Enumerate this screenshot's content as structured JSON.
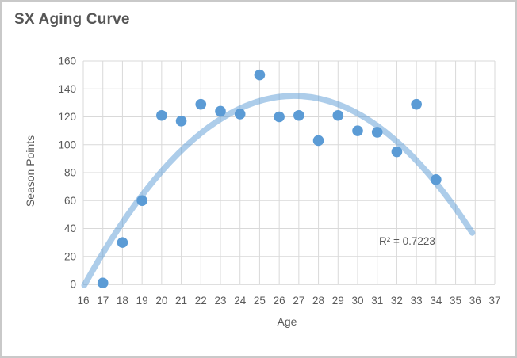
{
  "chart": {
    "title": "SX Aging Curve",
    "xlabel": "Age",
    "ylabel": "Season Points"
  },
  "chart_data": {
    "type": "scatter",
    "title": "SX Aging Curve",
    "xlabel": "Age",
    "ylabel": "Season Points",
    "xlim": [
      16,
      37
    ],
    "ylim": [
      0,
      160
    ],
    "x_ticks": [
      16,
      17,
      18,
      19,
      20,
      21,
      22,
      23,
      24,
      25,
      26,
      27,
      28,
      29,
      30,
      31,
      32,
      33,
      34,
      35,
      36,
      37
    ],
    "y_ticks": [
      0,
      20,
      40,
      60,
      80,
      100,
      120,
      140,
      160
    ],
    "grid": true,
    "legend": "none",
    "annotation": "R² = 0.7223",
    "points": [
      {
        "x": 17,
        "y": 1
      },
      {
        "x": 18,
        "y": 30
      },
      {
        "x": 19,
        "y": 60
      },
      {
        "x": 20,
        "y": 121
      },
      {
        "x": 21,
        "y": 117
      },
      {
        "x": 22,
        "y": 129
      },
      {
        "x": 23,
        "y": 124
      },
      {
        "x": 24,
        "y": 122
      },
      {
        "x": 25,
        "y": 150
      },
      {
        "x": 26,
        "y": 120
      },
      {
        "x": 27,
        "y": 121
      },
      {
        "x": 28,
        "y": 103
      },
      {
        "x": 29,
        "y": 121
      },
      {
        "x": 30,
        "y": 110
      },
      {
        "x": 31,
        "y": 109
      },
      {
        "x": 32,
        "y": 95
      },
      {
        "x": 33,
        "y": 129
      },
      {
        "x": 34,
        "y": 75
      }
    ],
    "trendline": {
      "type": "polynomial",
      "order": 2,
      "r2": 0.7223,
      "peak": 135,
      "vertex_x": 26.75,
      "a": 1.185,
      "x_start": 16.05,
      "x_end": 35.85
    },
    "colors": {
      "point": "#5B9BD5",
      "trendline": "#5B9BD5",
      "trendline_opacity": 0.5,
      "gridline": "#D9D9D9",
      "axis_line": "#BFBFBF",
      "text": "#595959",
      "title_text": "#565656"
    }
  }
}
